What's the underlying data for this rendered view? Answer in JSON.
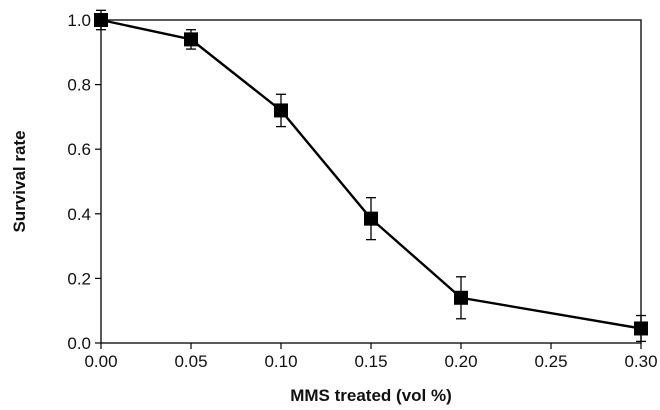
{
  "chart_data": {
    "type": "line",
    "xlabel": "MMS treated (vol %)",
    "ylabel": "Survival rate",
    "xlim": [
      0,
      0.3
    ],
    "ylim": [
      0,
      1.0
    ],
    "x_ticks": [
      "0.00",
      "0.05",
      "0.10",
      "0.15",
      "0.20",
      "0.25",
      "0.30"
    ],
    "y_ticks": [
      "0.0",
      "0.2",
      "0.4",
      "0.6",
      "0.8",
      "1.0"
    ],
    "grid": false,
    "series": [
      {
        "marker": "square",
        "color": "#000000",
        "x": [
          0.0,
          0.05,
          0.1,
          0.15,
          0.2,
          0.3
        ],
        "y": [
          1.0,
          0.94,
          0.72,
          0.385,
          0.14,
          0.045
        ],
        "error": [
          0.03,
          0.03,
          0.05,
          0.065,
          0.065,
          0.04
        ]
      }
    ]
  }
}
